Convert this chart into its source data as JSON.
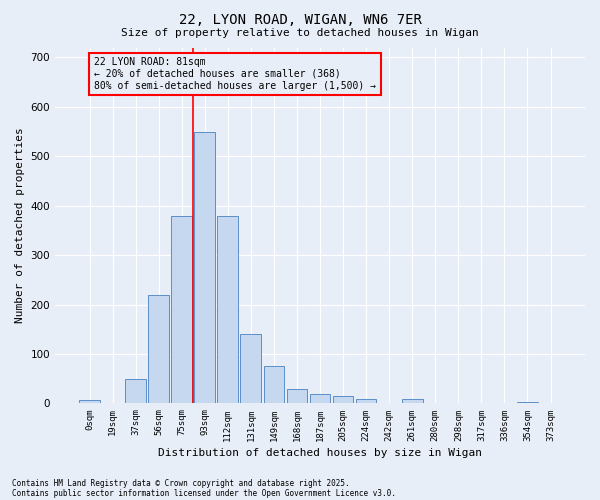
{
  "title_line1": "22, LYON ROAD, WIGAN, WN6 7ER",
  "title_line2": "Size of property relative to detached houses in Wigan",
  "xlabel": "Distribution of detached houses by size in Wigan",
  "ylabel": "Number of detached properties",
  "bar_color": "#c5d8f0",
  "bar_edge_color": "#5b8fc9",
  "background_color": "#e8eef8",
  "grid_color": "#ffffff",
  "tick_labels": [
    "0sqm",
    "19sqm",
    "37sqm",
    "56sqm",
    "75sqm",
    "93sqm",
    "112sqm",
    "131sqm",
    "149sqm",
    "168sqm",
    "187sqm",
    "205sqm",
    "224sqm",
    "242sqm",
    "261sqm",
    "280sqm",
    "298sqm",
    "317sqm",
    "336sqm",
    "354sqm",
    "373sqm"
  ],
  "bar_heights": [
    7,
    0,
    50,
    220,
    380,
    550,
    380,
    140,
    75,
    30,
    20,
    15,
    10,
    0,
    8,
    0,
    0,
    0,
    0,
    3,
    0
  ],
  "ylim": [
    0,
    720
  ],
  "yticks": [
    0,
    100,
    200,
    300,
    400,
    500,
    600,
    700
  ],
  "annotation_line1": "22 LYON ROAD: 81sqm",
  "annotation_line2": "← 20% of detached houses are smaller (368)",
  "annotation_line3": "80% of semi-detached houses are larger (1,500) →",
  "vline_x_idx": 4,
  "footnote1": "Contains HM Land Registry data © Crown copyright and database right 2025.",
  "footnote2": "Contains public sector information licensed under the Open Government Licence v3.0."
}
